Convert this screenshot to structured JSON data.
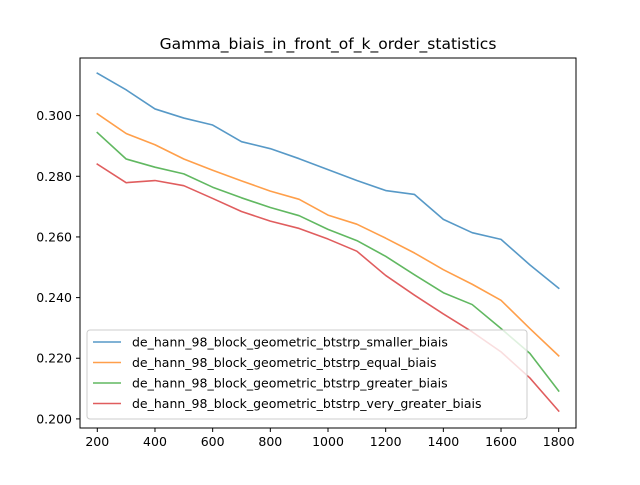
{
  "chart_data": {
    "type": "line",
    "title": "Gamma_biais_in_front_of_k_order_statistics",
    "xlabel": "",
    "ylabel": "",
    "x": [
      200,
      300,
      400,
      500,
      600,
      700,
      800,
      900,
      1000,
      1100,
      1200,
      1300,
      1400,
      1500,
      1600,
      1700,
      1800
    ],
    "xlim": [
      140,
      1860
    ],
    "ylim": [
      0.197,
      0.319
    ],
    "xticks": [
      "200",
      "400",
      "600",
      "800",
      "1000",
      "1200",
      "1400",
      "1600",
      "1800"
    ],
    "yticks": [
      "0.200",
      "0.220",
      "0.240",
      "0.260",
      "0.280",
      "0.300"
    ],
    "grid": false,
    "legend_position": "lower-left",
    "series": [
      {
        "name": "de_hann_98_block_geometric_btstrp_smaller_biais",
        "color": "#1f77b4",
        "values": [
          0.314,
          0.3085,
          0.3022,
          0.2992,
          0.2969,
          0.2914,
          0.2891,
          0.2858,
          0.2822,
          0.2786,
          0.2753,
          0.274,
          0.2658,
          0.2614,
          0.2592,
          0.2508,
          0.2431
        ]
      },
      {
        "name": "de_hann_98_block_geometric_btstrp_equal_biais",
        "color": "#ff7f0e",
        "values": [
          0.3006,
          0.2941,
          0.2904,
          0.2857,
          0.282,
          0.2785,
          0.2751,
          0.2724,
          0.2672,
          0.2642,
          0.2596,
          0.2547,
          0.2492,
          0.2444,
          0.2391,
          0.2298,
          0.2208
        ]
      },
      {
        "name": "de_hann_98_block_geometric_btstrp_greater_biais",
        "color": "#2ca02c",
        "values": [
          0.2944,
          0.2857,
          0.283,
          0.2808,
          0.2764,
          0.2729,
          0.2697,
          0.267,
          0.2625,
          0.2588,
          0.2536,
          0.2475,
          0.2416,
          0.2377,
          0.2298,
          0.2216,
          0.2092
        ]
      },
      {
        "name": "de_hann_98_block_geometric_btstrp_very_greater_biais",
        "color": "#d62728",
        "values": [
          0.284,
          0.2779,
          0.2786,
          0.2769,
          0.2727,
          0.2684,
          0.2652,
          0.2628,
          0.2593,
          0.2553,
          0.2473,
          0.2408,
          0.2346,
          0.2287,
          0.2221,
          0.2135,
          0.2026
        ]
      }
    ]
  }
}
